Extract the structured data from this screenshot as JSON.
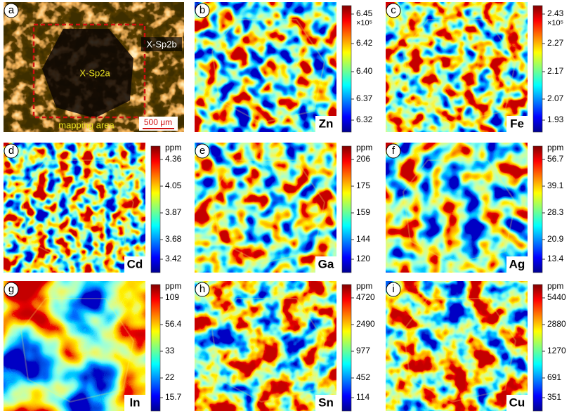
{
  "panels": [
    {
      "letter": "a",
      "sample_outer": "X-Sp2b",
      "sample_inner": "X-Sp2a",
      "region": "mapping area",
      "scale_bar": "500 μm"
    },
    {
      "letter": "b",
      "element": "Zn",
      "multiplier": "×10⁵",
      "ticks": [
        "6.45",
        "6.42",
        "6.40",
        "6.37",
        "6.32"
      ]
    },
    {
      "letter": "c",
      "element": "Fe",
      "multiplier": "×10⁵",
      "ticks": [
        "2.43",
        "2.27",
        "2.17",
        "2.07",
        "1.93"
      ]
    },
    {
      "letter": "d",
      "element": "Cd",
      "unit": "ppm",
      "ticks": [
        "4.36",
        "4.05",
        "3.87",
        "3.68",
        "3.42"
      ]
    },
    {
      "letter": "e",
      "element": "Ga",
      "unit": "ppm",
      "ticks": [
        "206",
        "175",
        "159",
        "144",
        "120"
      ]
    },
    {
      "letter": "f",
      "element": "Ag",
      "unit": "ppm",
      "ticks": [
        "56.7",
        "39.1",
        "28.3",
        "20.9",
        "13.4"
      ]
    },
    {
      "letter": "g",
      "element": "In",
      "unit": "ppm",
      "ticks": [
        "109",
        "56.4",
        "33",
        "22",
        "15.7"
      ]
    },
    {
      "letter": "h",
      "element": "Sn",
      "unit": "ppm",
      "ticks": [
        "4720",
        "2490",
        "977",
        "452",
        "114"
      ]
    },
    {
      "letter": "i",
      "element": "Cu",
      "unit": "ppm",
      "ticks": [
        "5440",
        "2880",
        "1270",
        "691",
        "351"
      ]
    }
  ]
}
